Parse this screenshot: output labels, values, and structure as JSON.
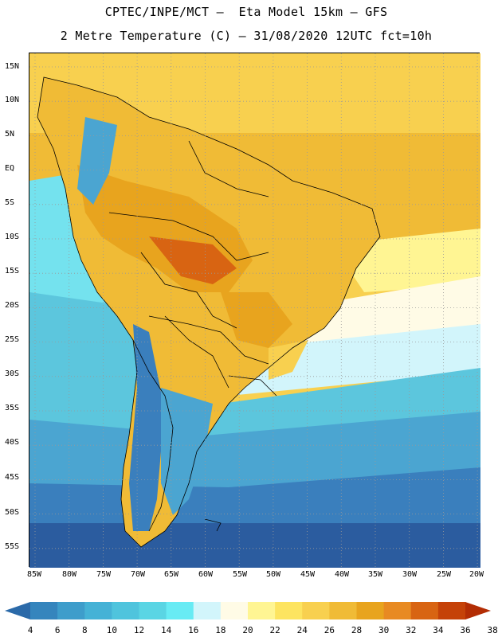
{
  "header": {
    "line1": "CPTEC/INPE/MCT –  Eta Model 15km – GFS",
    "line2": "2 Metre Temperature (C) – 31/08/2020 12UTC fct=10h"
  },
  "axes": {
    "lat_labels": [
      "15N",
      "10N",
      "5N",
      "EQ",
      "5S",
      "10S",
      "15S",
      "20S",
      "25S",
      "30S",
      "35S",
      "40S",
      "45S",
      "50S",
      "55S"
    ],
    "lon_labels": [
      "85W",
      "80W",
      "75W",
      "70W",
      "65W",
      "60W",
      "55W",
      "50W",
      "45W",
      "40W",
      "35W",
      "30W",
      "25W",
      "20W"
    ]
  },
  "legend": {
    "labels": [
      "4",
      "6",
      "8",
      "10",
      "12",
      "14",
      "16",
      "18",
      "20",
      "22",
      "24",
      "26",
      "28",
      "30",
      "32",
      "34",
      "36",
      "38"
    ],
    "colors": [
      "#2b6aa9",
      "#3585bd",
      "#3e9dcb",
      "#45b2d6",
      "#4fc4dd",
      "#5ad5e4",
      "#68ebf4",
      "#d2f5fb",
      "#fffbe6",
      "#fff593",
      "#fde460",
      "#f8d04f",
      "#f0bb36",
      "#e8a41e",
      "#e88a22",
      "#d86412",
      "#c54208",
      "#b32d04"
    ]
  },
  "map": {
    "ocean_colors": [
      "#2b5c9f",
      "#3a7fbd",
      "#4ba5d1",
      "#5cc6dd",
      "#74e2ee",
      "#d2f5fb",
      "#fffbe6",
      "#fff593",
      "#f8d04f",
      "#f0bb36"
    ],
    "land_colors": [
      "#3a7fbd",
      "#4ba5d1",
      "#f0bb36",
      "#e8a41e",
      "#d86412",
      "#f8d04f"
    ]
  }
}
